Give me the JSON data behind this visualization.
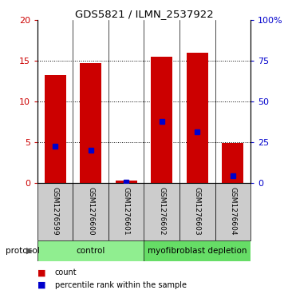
{
  "title": "GDS5821 / ILMN_2537922",
  "samples": [
    "GSM1276599",
    "GSM1276600",
    "GSM1276601",
    "GSM1276602",
    "GSM1276603",
    "GSM1276604"
  ],
  "counts": [
    13.3,
    14.7,
    0.3,
    15.5,
    16.0,
    4.9
  ],
  "percentiles": [
    4.5,
    4.0,
    0.1,
    7.5,
    6.3,
    0.9
  ],
  "bar_color": "#cc0000",
  "dot_color": "#0000cc",
  "ylim_left": [
    0,
    20
  ],
  "ylim_right": [
    0,
    100
  ],
  "yticks_left": [
    0,
    5,
    10,
    15,
    20
  ],
  "yticks_right": [
    0,
    25,
    50,
    75,
    100
  ],
  "ytick_labels_right": [
    "0",
    "25",
    "50",
    "75",
    "100%"
  ],
  "protocol_labels": [
    "control",
    "myofibroblast depletion"
  ],
  "protocol_colors": [
    "#90ee90",
    "#66dd66"
  ],
  "bg_color": "#cccccc",
  "legend_count_label": "count",
  "legend_pct_label": "percentile rank within the sample",
  "bar_width": 0.6,
  "gridline_ticks": [
    5,
    10,
    15
  ]
}
